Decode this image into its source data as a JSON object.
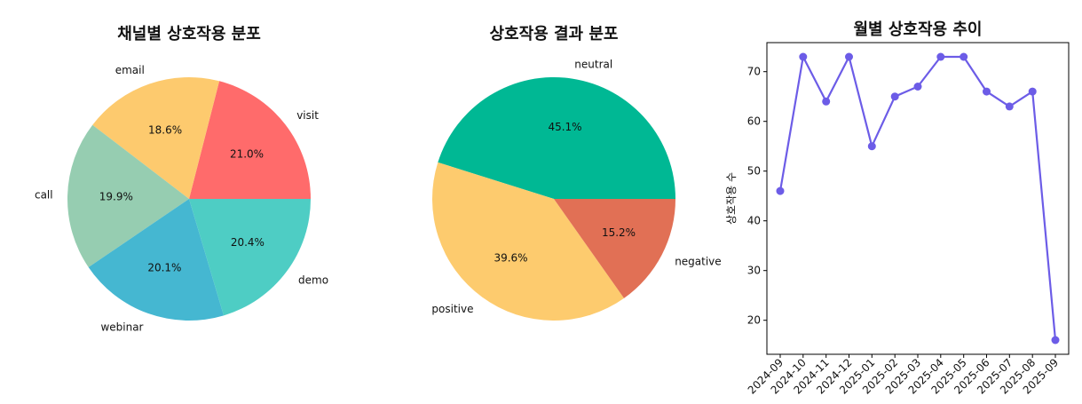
{
  "chart_data": [
    {
      "type": "pie",
      "title": "채널별 상호작용 분포",
      "slices": [
        {
          "label": "visit",
          "value": 21.0,
          "pct_label": "21.0%",
          "color": "#ff6b6b"
        },
        {
          "label": "email",
          "value": 18.6,
          "pct_label": "18.6%",
          "color": "#fdca6e"
        },
        {
          "label": "call",
          "value": 19.9,
          "pct_label": "19.9%",
          "color": "#96cdb1"
        },
        {
          "label": "webinar",
          "value": 20.1,
          "pct_label": "20.1%",
          "color": "#45b7d1"
        },
        {
          "label": "demo",
          "value": 20.4,
          "pct_label": "20.4%",
          "color": "#4ecdc4"
        }
      ],
      "start_angle_deg": 0,
      "direction": "counterclockwise"
    },
    {
      "type": "pie",
      "title": "상호작용 결과 분포",
      "slices": [
        {
          "label": "neutral",
          "value": 45.1,
          "pct_label": "45.1%",
          "color": "#00b894"
        },
        {
          "label": "positive",
          "value": 39.6,
          "pct_label": "39.6%",
          "color": "#fdcb6e"
        },
        {
          "label": "negative",
          "value": 15.2,
          "pct_label": "15.2%",
          "color": "#e17055"
        }
      ],
      "start_angle_deg": 0,
      "direction": "counterclockwise"
    },
    {
      "type": "line",
      "title": "월별 상호작용 추이",
      "xlabel": "",
      "ylabel": "상호작용 수",
      "x": [
        "2024-09",
        "2024-10",
        "2024-11",
        "2024-12",
        "2025-01",
        "2025-02",
        "2025-03",
        "2025-04",
        "2025-05",
        "2025-06",
        "2025-07",
        "2025-08",
        "2025-09"
      ],
      "y": [
        46,
        73,
        64,
        73,
        55,
        65,
        67,
        73,
        73,
        66,
        63,
        66,
        16
      ],
      "yticks": [
        20,
        30,
        40,
        50,
        60,
        70
      ],
      "ylim": [
        13.15,
        75.85
      ],
      "color": "#6c5ce7",
      "marker": "circle",
      "grid": false
    }
  ]
}
